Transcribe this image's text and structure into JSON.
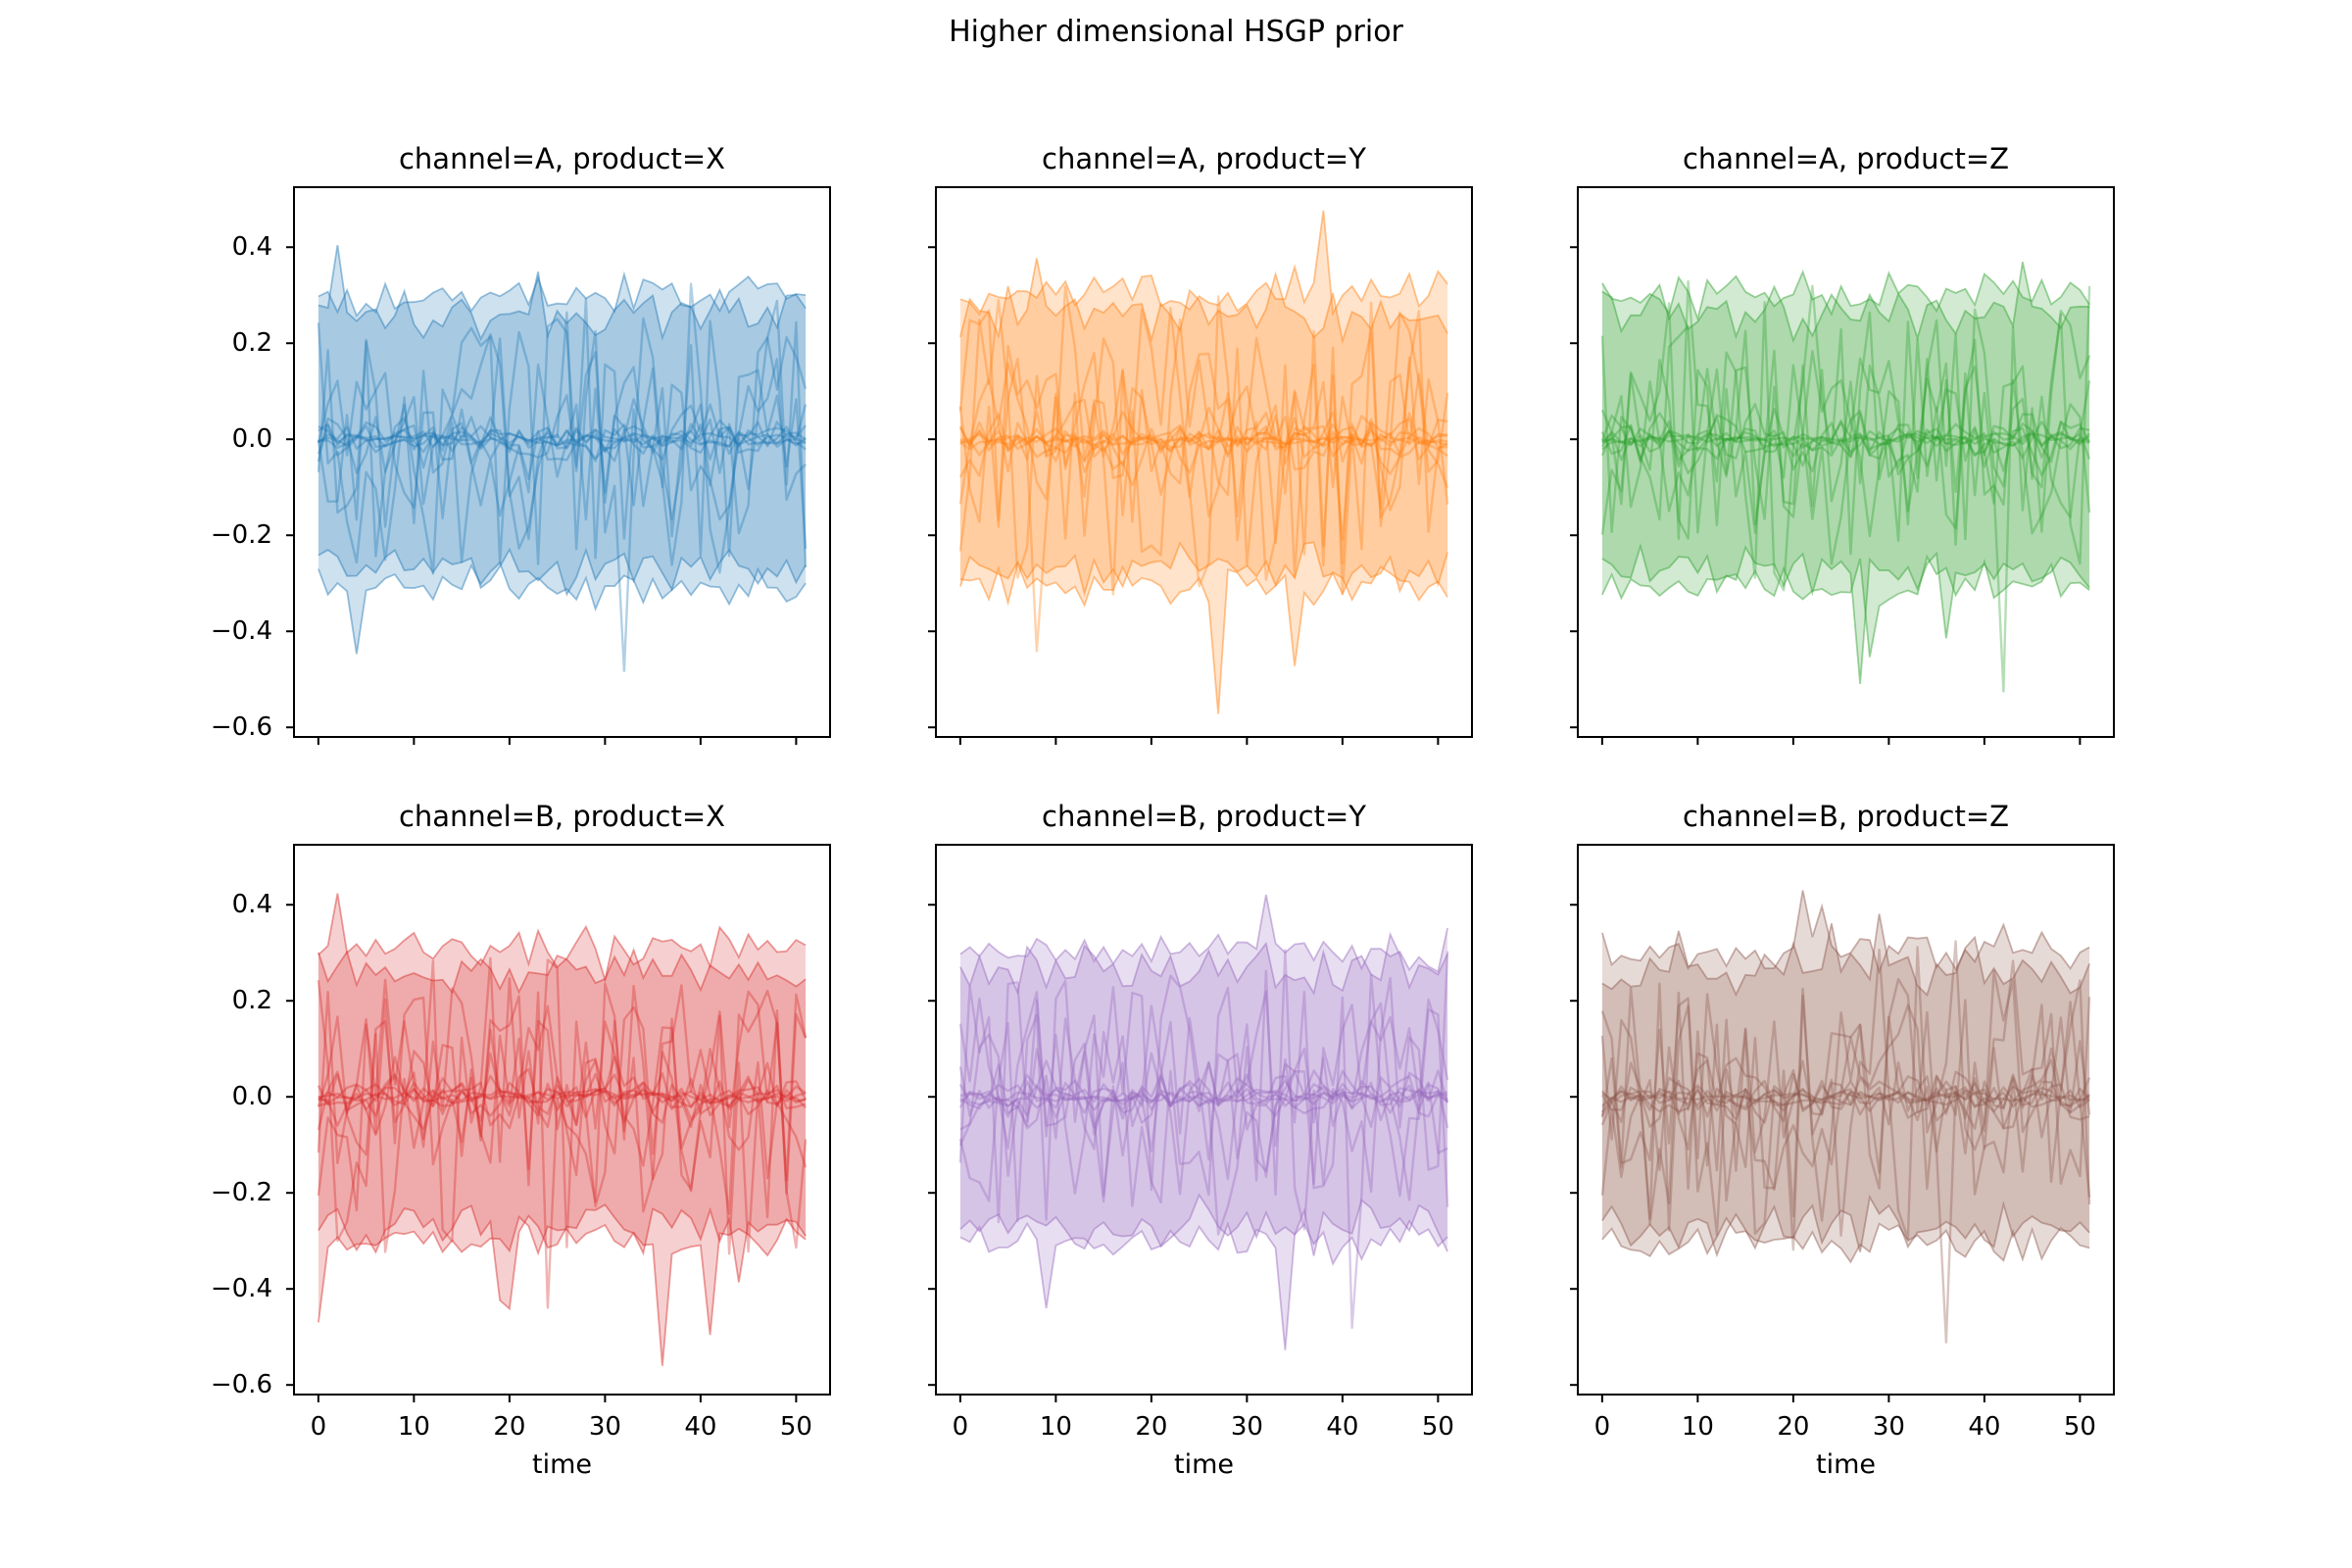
{
  "figure": {
    "suptitle": "Higher dimensional HSGP prior",
    "background": "#ffffff"
  },
  "chart_data": {
    "type": "line",
    "title": "Higher dimensional HSGP prior",
    "xlabel": "time",
    "grid": false,
    "legend": null,
    "layout": "2 rows x 3 columns, shared x and y axes",
    "x_ticks": [
      0,
      10,
      20,
      30,
      40,
      50
    ],
    "x_tick_labels": [
      "0",
      "10",
      "20",
      "30",
      "40",
      "50"
    ],
    "y_ticks": [
      0.4,
      0.2,
      0.0,
      -0.2,
      -0.4,
      -0.6
    ],
    "y_tick_labels": [
      "0.4",
      "0.2",
      "0.0",
      "−0.2",
      "−0.4",
      "−0.6"
    ],
    "xlim": [
      -2.55,
      53.55
    ],
    "ylim": [
      -0.62,
      0.525
    ],
    "x_range": [
      0,
      51
    ],
    "n_points": 52,
    "subplots": [
      {
        "row": 0,
        "col": 0,
        "title": "channel=A, product=X",
        "color": "#1f77b4",
        "seed": 101
      },
      {
        "row": 0,
        "col": 1,
        "title": "channel=A, product=Y",
        "color": "#ff7f0e",
        "seed": 202
      },
      {
        "row": 0,
        "col": 2,
        "title": "channel=A, product=Z",
        "color": "#2ca02c",
        "seed": 303
      },
      {
        "row": 1,
        "col": 0,
        "title": "channel=B, product=X",
        "color": "#d62728",
        "seed": 404
      },
      {
        "row": 1,
        "col": 1,
        "title": "channel=B, product=Y",
        "color": "#9467bd",
        "seed": 505
      },
      {
        "row": 1,
        "col": 2,
        "title": "channel=B, product=Z",
        "color": "#8c564b",
        "seed": 606
      }
    ],
    "band_specs": [
      {
        "upper": 0.3,
        "lower": -0.3,
        "jitter": 0.065
      },
      {
        "upper": 0.26,
        "lower": -0.27,
        "jitter": 0.075
      }
    ],
    "band_alpha": 0.22,
    "band_edge_alpha": 0.45,
    "line_amplitudes": [
      0.33,
      0.27,
      0.22,
      0.17,
      0.12,
      0.09,
      0.065,
      0.05,
      0.038,
      0.028,
      0.018
    ],
    "line_alpha": 0.35,
    "description": "HSGP prior samples per channel/product: many jagged noisy sample lines centered on 0 (core lines within ±0.05, larger swings to ±0.35) plus translucent envelope bands spanning roughly −0.3 to +0.3 with jagged edges reaching +0.44 and occasional downward spikes near −0.55"
  }
}
